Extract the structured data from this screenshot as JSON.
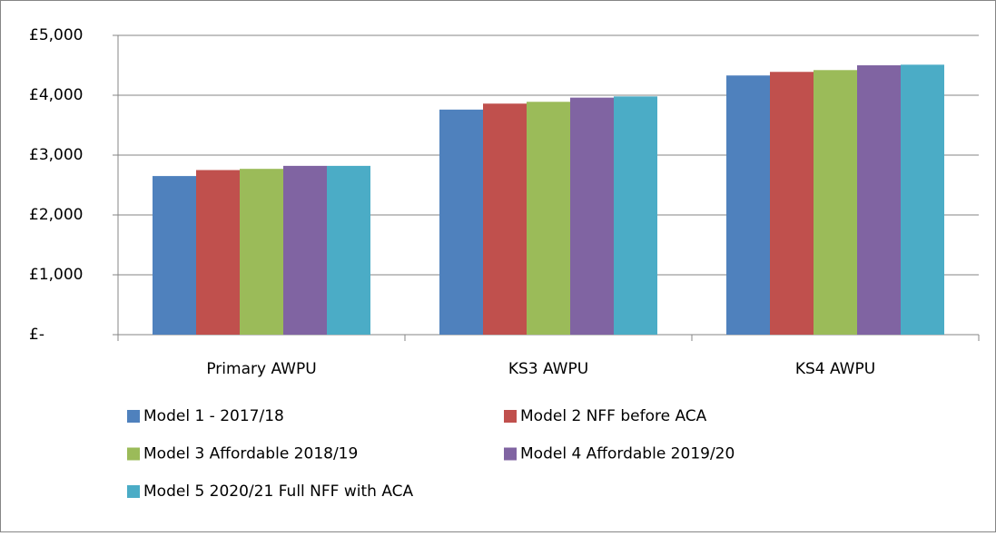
{
  "chart_data": {
    "type": "bar",
    "categories": [
      "Primary AWPU",
      "KS3 AWPU",
      "KS4 AWPU"
    ],
    "series": [
      {
        "name": "Model 1 - 2017/18",
        "color": "#4f81bd",
        "values": [
          2650,
          3760,
          4330
        ]
      },
      {
        "name": "Model 2 NFF before ACA",
        "color": "#c0504d",
        "values": [
          2750,
          3860,
          4390
        ]
      },
      {
        "name": "Model 3 Affordable 2018/19",
        "color": "#9bbb59",
        "values": [
          2770,
          3890,
          4420
        ]
      },
      {
        "name": "Model 4 Affordable 2019/20",
        "color": "#8064a2",
        "values": [
          2820,
          3960,
          4500
        ]
      },
      {
        "name": "Model 5 2020/21 Full NFF with ACA",
        "color": "#4bacc6",
        "values": [
          2820,
          3980,
          4510
        ]
      }
    ],
    "ylim": [
      0,
      5000
    ],
    "yticks": [
      {
        "value": 0,
        "label": "£-"
      },
      {
        "value": 1000,
        "label": "£1,000"
      },
      {
        "value": 2000,
        "label": "£2,000"
      },
      {
        "value": 3000,
        "label": "£3,000"
      },
      {
        "value": 4000,
        "label": "£4,000"
      },
      {
        "value": 5000,
        "label": "£5,000"
      }
    ],
    "grid": true,
    "legend": "bottom"
  }
}
